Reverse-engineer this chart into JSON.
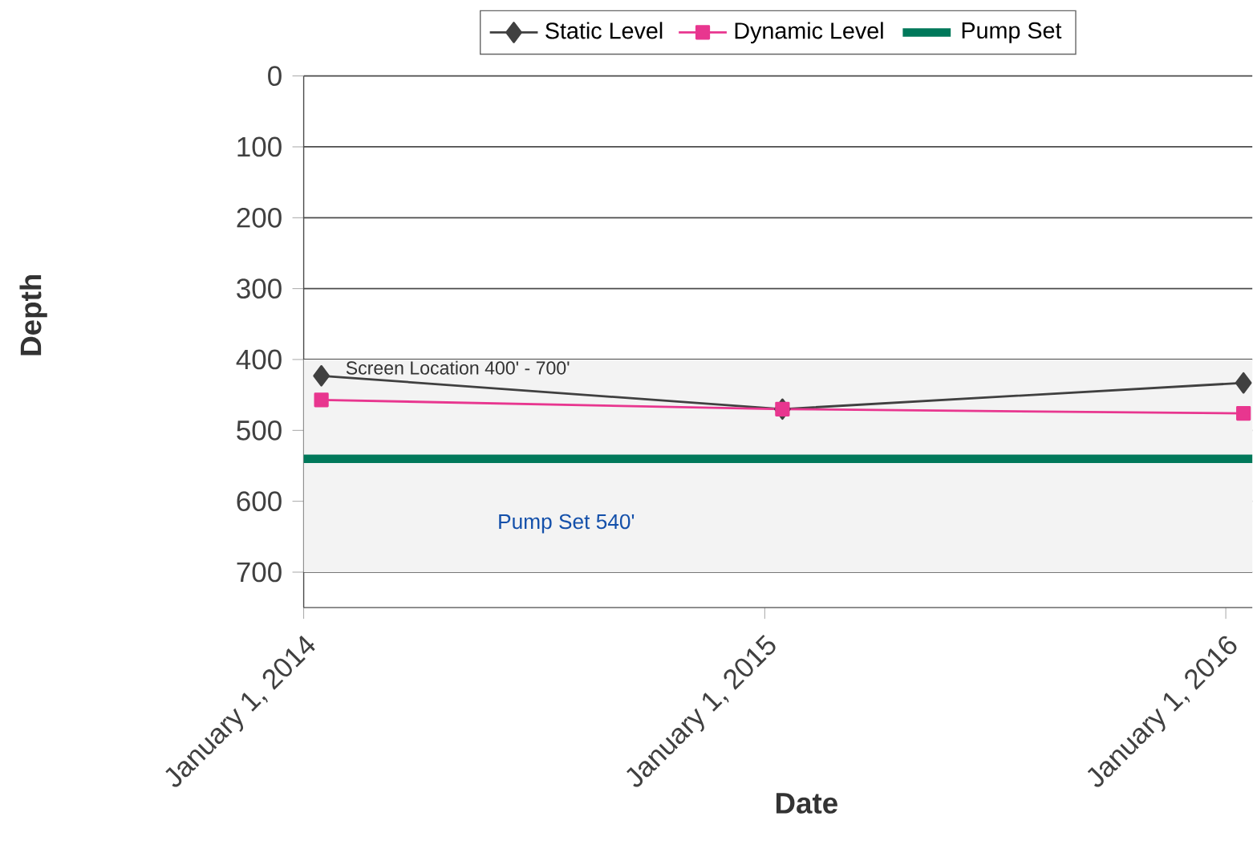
{
  "chart_data": {
    "type": "line",
    "xlabel": "Date",
    "ylabel": "Depth",
    "xlim": [
      "2014-01-01",
      "2016-01-22"
    ],
    "ylim": [
      750,
      0
    ],
    "xticks": [
      {
        "value": "2014-01-01",
        "label": "January 1, 2014"
      },
      {
        "value": "2015-01-01",
        "label": "January 1, 2015"
      },
      {
        "value": "2016-01-01",
        "label": "January 1, 2016"
      }
    ],
    "yticks": [
      0,
      100,
      200,
      300,
      400,
      500,
      600,
      700
    ],
    "grid": "y",
    "legend": "top",
    "line_style": "solid",
    "series": [
      {
        "name": "Static Level",
        "color": "#404040",
        "marker": "diamond",
        "x": [
          "2014-01-15",
          "2015-01-15",
          "2016-01-15"
        ],
        "values": [
          423,
          470,
          433
        ]
      },
      {
        "name": "Dynamic Level",
        "color": "#e8368f",
        "marker": "square",
        "x": [
          "2014-01-15",
          "2015-01-15",
          "2016-01-15"
        ],
        "values": [
          457,
          470,
          476
        ]
      },
      {
        "name": "Pump Set",
        "color": "#00785a",
        "marker": "none",
        "x": [
          "2014-01-01",
          "2016-01-22"
        ],
        "values": [
          540,
          540
        ]
      }
    ],
    "bands": [
      {
        "axis": "y",
        "from": 400,
        "to": 700,
        "label": "Screen Location 400' - 700'",
        "color": "#f3f3f3"
      }
    ],
    "annotations": [
      "Pump Set 540'"
    ]
  }
}
